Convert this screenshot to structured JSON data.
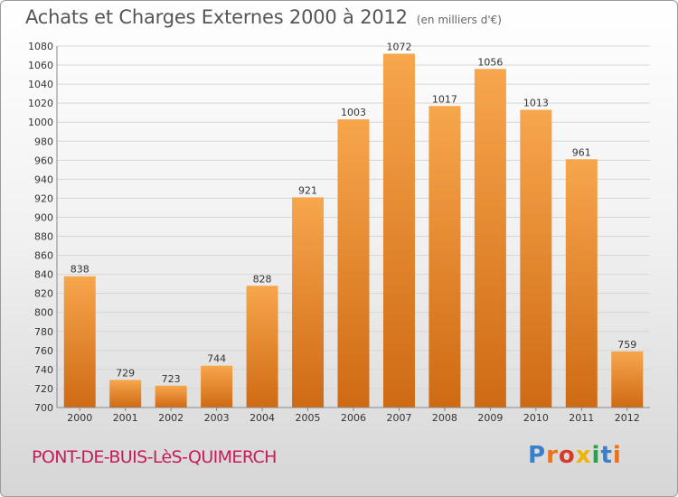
{
  "title": "Achats et Charges Externes 2000 à 2012",
  "subtitle": "(en milliers d'€)",
  "commune": "PONT-DE-BUIS-LèS-QUIMERCH",
  "logo": "Proxiti",
  "colors": {
    "bar_light": "#f7a64c",
    "bar_dark": "#cf6a14",
    "commune_text": "#c71b5a",
    "logo_letters": [
      "#3a7fc7",
      "#e8731c",
      "#d93a2a",
      "#f0b400",
      "#2aa04a",
      "#3a7fc7",
      "#e8731c"
    ]
  },
  "chart_data": {
    "type": "bar",
    "categories": [
      "2000",
      "2001",
      "2002",
      "2003",
      "2004",
      "2005",
      "2006",
      "2007",
      "2008",
      "2009",
      "2010",
      "2011",
      "2012"
    ],
    "values": [
      838,
      729,
      723,
      744,
      828,
      921,
      1003,
      1072,
      1017,
      1056,
      1013,
      961,
      759
    ],
    "ylim": [
      700,
      1080
    ],
    "yticks": [
      700,
      720,
      740,
      760,
      780,
      800,
      820,
      840,
      860,
      880,
      900,
      920,
      940,
      960,
      980,
      1000,
      1020,
      1040,
      1060,
      1080
    ],
    "grid": true,
    "title": "Achats et Charges Externes 2000 à 2012",
    "xlabel": "",
    "ylabel": ""
  }
}
